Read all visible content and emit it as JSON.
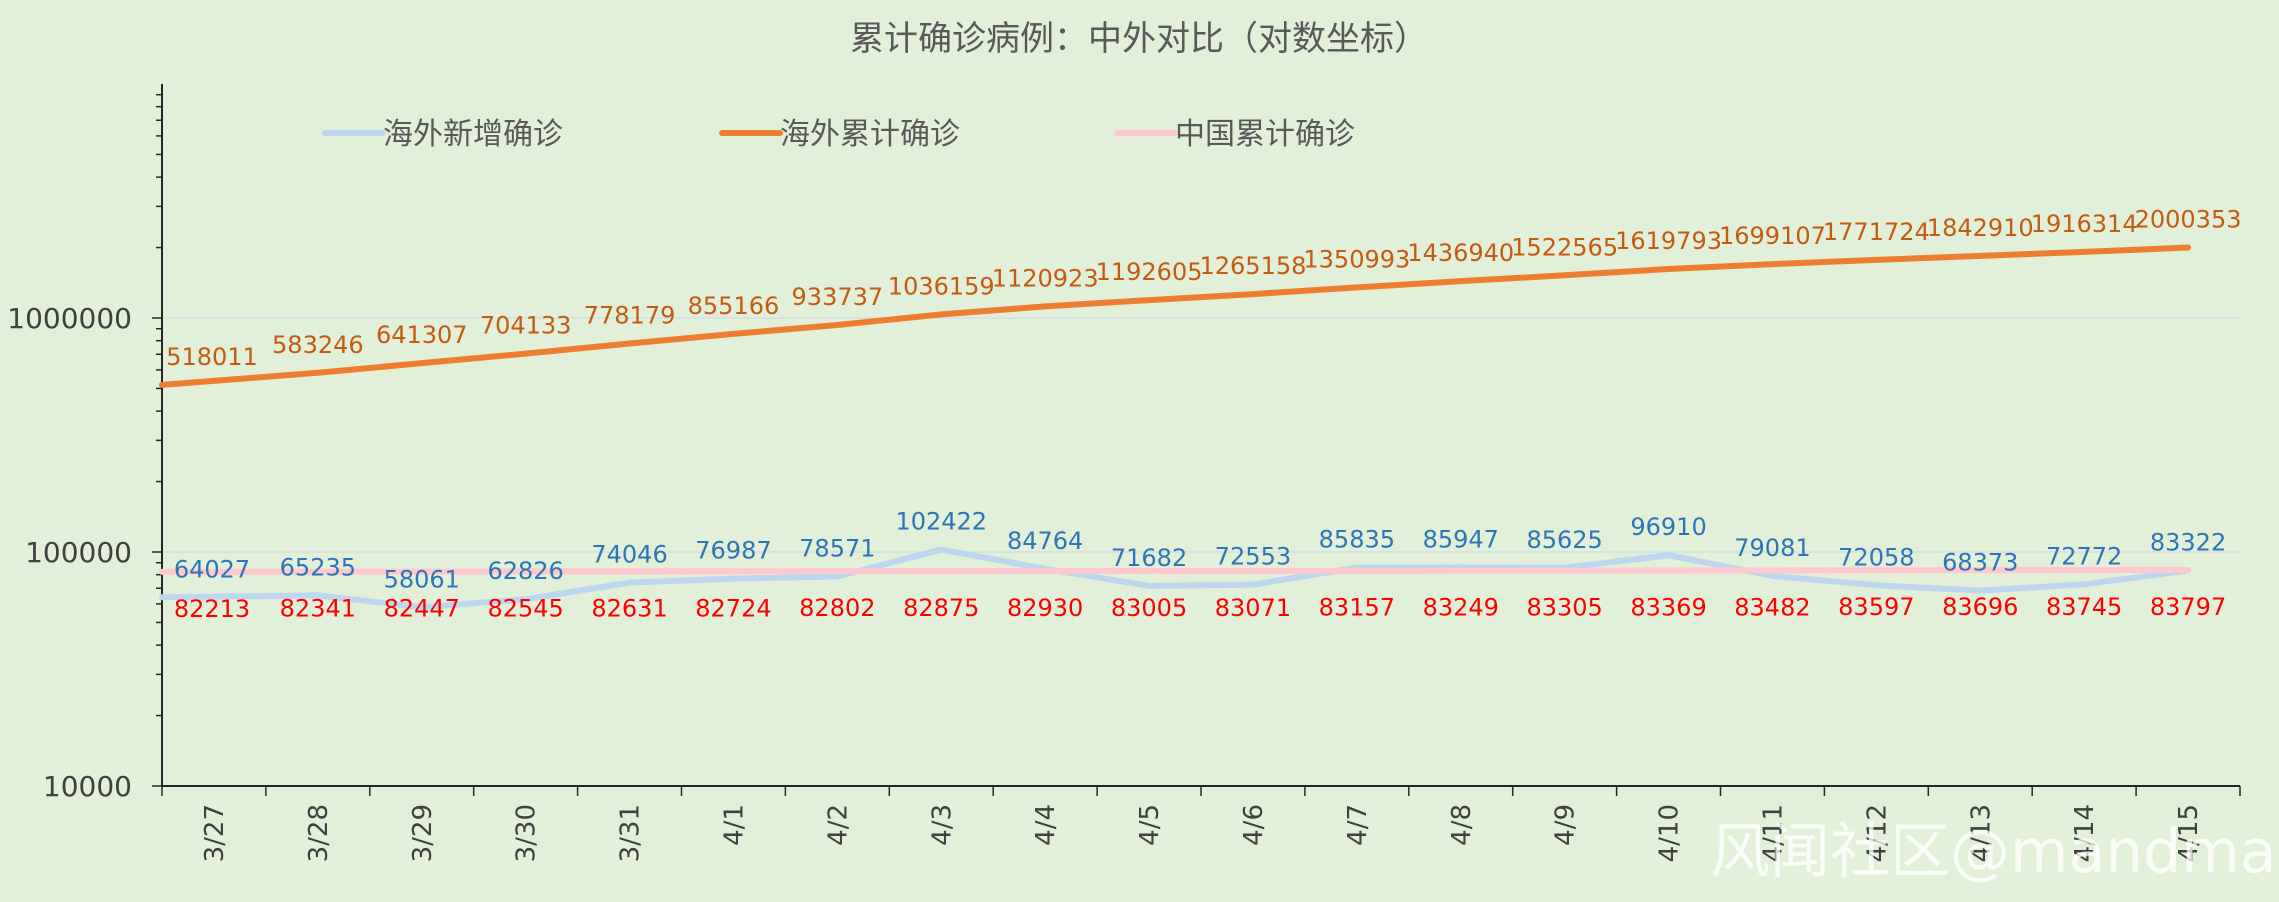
{
  "chart_data": {
    "type": "line",
    "title": "累计确诊病例：中外对比（对数坐标）",
    "yscale": "log",
    "ylim": [
      10000,
      10000000
    ],
    "yticks": [
      10000,
      100000,
      1000000
    ],
    "ytick_labels": [
      "10000",
      "100000",
      "1000000"
    ],
    "categories": [
      "3/27",
      "3/28",
      "3/29",
      "3/30",
      "3/31",
      "4/1",
      "4/2",
      "4/3",
      "4/4",
      "4/5",
      "4/6",
      "4/7",
      "4/8",
      "4/9",
      "4/10",
      "4/11",
      "4/12",
      "4/13",
      "4/14",
      "4/15"
    ],
    "legend_position": "top-left",
    "series": [
      {
        "name": "海外新增确诊",
        "color": "#bdd7ee",
        "label_color": "#2e75b6",
        "values": [
          64027,
          65235,
          58061,
          62826,
          74046,
          76987,
          78571,
          102422,
          84764,
          71682,
          72553,
          85835,
          85947,
          85625,
          96910,
          79081,
          72058,
          68373,
          72772,
          83322
        ]
      },
      {
        "name": "海外累计确诊",
        "color": "#ed7d31",
        "label_color": "#c55a11",
        "values": [
          518011,
          583246,
          641307,
          704133,
          778179,
          855166,
          933737,
          1036159,
          1120923,
          1192605,
          1265158,
          1350993,
          1436940,
          1522565,
          1619793,
          1699107,
          1771724,
          1842910,
          1916314,
          2000353
        ]
      },
      {
        "name": "中国累计确诊",
        "color": "#ffc7ce",
        "label_color": "#ff0000",
        "values": [
          82213,
          82341,
          82447,
          82545,
          82631,
          82724,
          82802,
          82875,
          82930,
          83005,
          83071,
          83157,
          83249,
          83305,
          83369,
          83482,
          83597,
          83696,
          83745,
          83797
        ]
      }
    ]
  },
  "watermark": "风闻社区@mandman"
}
